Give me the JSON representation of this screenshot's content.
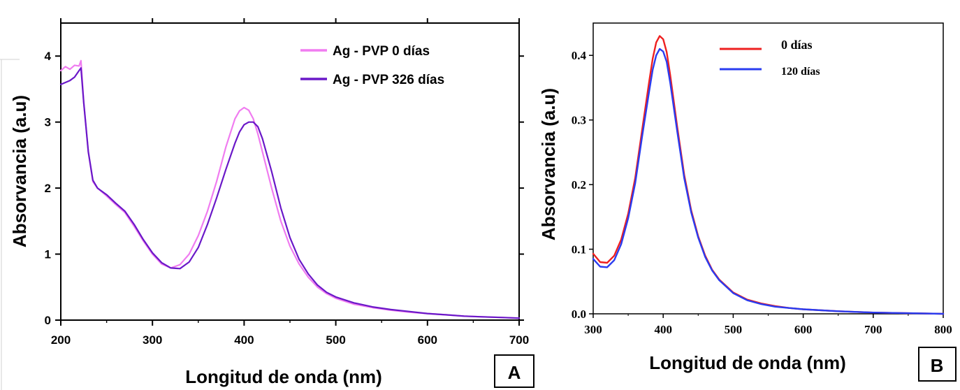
{
  "chart_data": [
    {
      "panel_label": "A",
      "type": "line",
      "xlabel": "Longitud de onda (nm)",
      "ylabel": "Absorvancia (a.u)",
      "xlim": [
        200,
        700
      ],
      "ylim": [
        0,
        4.5
      ],
      "xticks": [
        200,
        300,
        400,
        500,
        600,
        700
      ],
      "yticks": [
        0,
        1,
        2,
        3,
        4
      ],
      "xtick_labels": [
        "200",
        "300",
        "400",
        "500",
        "600",
        "700"
      ],
      "ytick_labels": [
        "0",
        "1",
        "2",
        "3",
        "4"
      ],
      "grid": false,
      "legend_position": "top-right",
      "series": [
        {
          "name": "Ag - PVP 0 días",
          "color": "#f07cf0",
          "x": [
            200,
            205,
            210,
            215,
            220,
            222,
            225,
            230,
            235,
            240,
            250,
            260,
            270,
            280,
            290,
            300,
            310,
            320,
            330,
            340,
            350,
            360,
            370,
            380,
            390,
            395,
            400,
            405,
            410,
            415,
            420,
            430,
            440,
            450,
            460,
            470,
            480,
            490,
            500,
            520,
            540,
            560,
            580,
            600,
            620,
            640,
            660,
            680,
            700
          ],
          "y": [
            3.78,
            3.84,
            3.8,
            3.86,
            3.85,
            3.93,
            3.3,
            2.55,
            2.1,
            2.0,
            1.88,
            1.75,
            1.63,
            1.42,
            1.2,
            1.0,
            0.85,
            0.79,
            0.84,
            1.0,
            1.28,
            1.65,
            2.1,
            2.62,
            3.05,
            3.17,
            3.22,
            3.18,
            3.05,
            2.82,
            2.55,
            2.0,
            1.5,
            1.12,
            0.85,
            0.65,
            0.5,
            0.4,
            0.33,
            0.24,
            0.19,
            0.15,
            0.12,
            0.1,
            0.08,
            0.06,
            0.05,
            0.04,
            0.03
          ]
        },
        {
          "name": "Ag - PVP 326 días",
          "color": "#6a18c8",
          "x": [
            200,
            205,
            210,
            215,
            220,
            222,
            225,
            230,
            235,
            240,
            250,
            260,
            270,
            280,
            290,
            300,
            310,
            320,
            330,
            340,
            350,
            360,
            370,
            380,
            390,
            395,
            400,
            405,
            410,
            415,
            420,
            430,
            440,
            450,
            460,
            470,
            480,
            490,
            500,
            520,
            540,
            560,
            580,
            600,
            620,
            640,
            660,
            680,
            700
          ],
          "y": [
            3.57,
            3.6,
            3.63,
            3.68,
            3.78,
            3.82,
            3.3,
            2.55,
            2.12,
            2.0,
            1.9,
            1.77,
            1.65,
            1.45,
            1.22,
            1.02,
            0.87,
            0.79,
            0.78,
            0.88,
            1.1,
            1.45,
            1.85,
            2.28,
            2.68,
            2.85,
            2.96,
            3.0,
            3.0,
            2.93,
            2.75,
            2.25,
            1.7,
            1.25,
            0.92,
            0.7,
            0.53,
            0.42,
            0.35,
            0.26,
            0.2,
            0.16,
            0.13,
            0.1,
            0.08,
            0.06,
            0.05,
            0.04,
            0.03
          ]
        }
      ]
    },
    {
      "panel_label": "B",
      "type": "line",
      "xlabel": "Longitud de onda (nm)",
      "ylabel": "Absorvancia (a.u)",
      "xlim": [
        300,
        800
      ],
      "ylim": [
        0,
        0.45
      ],
      "xticks": [
        300,
        400,
        500,
        600,
        700,
        800
      ],
      "yticks": [
        0.0,
        0.1,
        0.2,
        0.3,
        0.4
      ],
      "xtick_labels": [
        "300",
        "400",
        "500",
        "600",
        "700",
        "800"
      ],
      "ytick_labels": [
        "0.0",
        "0.1",
        "0.2",
        "0.3",
        "0.4"
      ],
      "grid": false,
      "legend_position": "top-center",
      "series": [
        {
          "name": "0 días",
          "color": "#ee2020",
          "x": [
            300,
            310,
            320,
            330,
            340,
            350,
            360,
            370,
            380,
            385,
            390,
            395,
            400,
            405,
            410,
            420,
            430,
            440,
            450,
            460,
            470,
            480,
            500,
            520,
            540,
            560,
            580,
            600,
            650,
            700,
            750,
            800
          ],
          "y": [
            0.093,
            0.08,
            0.079,
            0.09,
            0.115,
            0.155,
            0.21,
            0.285,
            0.36,
            0.395,
            0.42,
            0.43,
            0.425,
            0.405,
            0.37,
            0.29,
            0.215,
            0.16,
            0.12,
            0.09,
            0.068,
            0.053,
            0.033,
            0.022,
            0.016,
            0.012,
            0.009,
            0.007,
            0.004,
            0.002,
            0.001,
            0.0
          ]
        },
        {
          "name": "120 días",
          "color": "#2a3cf0",
          "x": [
            300,
            310,
            320,
            330,
            340,
            350,
            360,
            370,
            380,
            385,
            390,
            395,
            400,
            405,
            410,
            420,
            430,
            440,
            450,
            460,
            470,
            480,
            500,
            520,
            540,
            560,
            580,
            600,
            650,
            700,
            750,
            800
          ],
          "y": [
            0.085,
            0.073,
            0.072,
            0.083,
            0.108,
            0.148,
            0.202,
            0.275,
            0.345,
            0.378,
            0.4,
            0.41,
            0.406,
            0.39,
            0.358,
            0.283,
            0.21,
            0.157,
            0.118,
            0.088,
            0.067,
            0.052,
            0.032,
            0.021,
            0.015,
            0.011,
            0.009,
            0.007,
            0.004,
            0.002,
            0.001,
            0.0
          ]
        }
      ]
    }
  ]
}
